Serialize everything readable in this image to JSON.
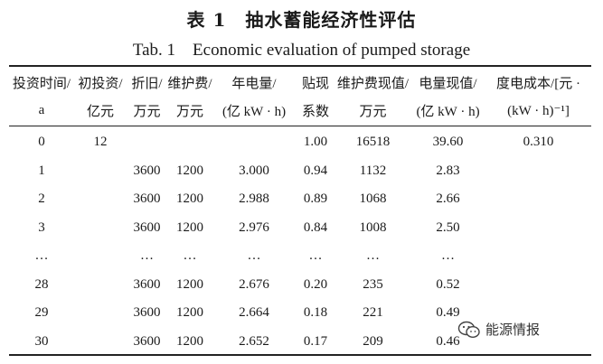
{
  "title_cn": "表 1　抽水蓄能经济性评估",
  "title_en": "Tab. 1　Economic evaluation of pumped storage",
  "header_row1": [
    "投资时间/",
    "初投资/",
    "折旧/",
    "维护费/",
    "年电量/",
    "贴现",
    "维护费现值/",
    "电量现值/",
    "度电成本/[元 ·"
  ],
  "header_row2": [
    "a",
    "亿元",
    "万元",
    "万元",
    "(亿 kW · h)",
    "系数",
    "万元",
    "(亿 kW · h)",
    "(kW · h)⁻¹]"
  ],
  "rows": [
    [
      "0",
      "12",
      "",
      "",
      "",
      "1.00",
      "16518",
      "39.60",
      "0.310"
    ],
    [
      "1",
      "",
      "3600",
      "1200",
      "3.000",
      "0.94",
      "1132",
      "2.83",
      ""
    ],
    [
      "2",
      "",
      "3600",
      "1200",
      "2.988",
      "0.89",
      "1068",
      "2.66",
      ""
    ],
    [
      "3",
      "",
      "3600",
      "1200",
      "2.976",
      "0.84",
      "1008",
      "2.50",
      ""
    ],
    [
      "…",
      "",
      "…",
      "…",
      "…",
      "…",
      "…",
      "…",
      ""
    ],
    [
      "28",
      "",
      "3600",
      "1200",
      "2.676",
      "0.20",
      "235",
      "0.52",
      ""
    ],
    [
      "29",
      "",
      "3600",
      "1200",
      "2.664",
      "0.18",
      "221",
      "0.49",
      ""
    ],
    [
      "30",
      "",
      "3600",
      "1200",
      "2.652",
      "0.17",
      "209",
      "0.46",
      ""
    ]
  ],
  "watermark": {
    "icon": "wechat-icon",
    "text": "能源情报"
  }
}
